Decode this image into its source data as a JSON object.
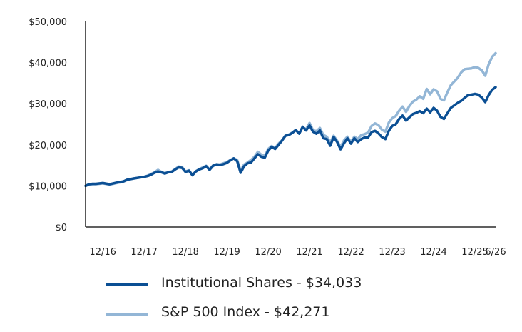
{
  "chart_data": {
    "type": "line",
    "title": "",
    "xlabel": "",
    "ylabel": "",
    "x_tick_labels": [
      "12/16",
      "12/17",
      "12/18",
      "12/19",
      "12/20",
      "12/21",
      "12/22",
      "12/23",
      "12/24",
      "12/25",
      "6/26"
    ],
    "y_tick_labels": [
      "$0",
      "$10,000",
      "$20,000",
      "$30,000",
      "$40,000",
      "$50,000"
    ],
    "ylim": [
      0,
      50000
    ],
    "xlim": [
      "2016-07",
      "2026-06"
    ],
    "grid": false,
    "legend_position": "bottom",
    "series": [
      {
        "name": "Institutional Shares - $34,033",
        "color": "#0b4f94",
        "values": [
          [
            "2016-07",
            10000
          ],
          [
            "2016-08",
            10400
          ],
          [
            "2016-09",
            10500
          ],
          [
            "2016-10",
            10500
          ],
          [
            "2016-12",
            10700
          ],
          [
            "2017-02",
            10400
          ],
          [
            "2017-04",
            10800
          ],
          [
            "2017-06",
            11100
          ],
          [
            "2017-07",
            11500
          ],
          [
            "2017-09",
            11800
          ],
          [
            "2017-12",
            12200
          ],
          [
            "2018-01",
            12400
          ],
          [
            "2018-02",
            12700
          ],
          [
            "2018-03",
            13200
          ],
          [
            "2018-04",
            13500
          ],
          [
            "2018-05",
            13300
          ],
          [
            "2018-06",
            13000
          ],
          [
            "2018-07",
            13300
          ],
          [
            "2018-08",
            13400
          ],
          [
            "2018-09",
            14000
          ],
          [
            "2018-10",
            14500
          ],
          [
            "2018-11",
            14400
          ],
          [
            "2018-12",
            13400
          ],
          [
            "2019-01",
            13700
          ],
          [
            "2019-02",
            12600
          ],
          [
            "2019-03",
            13500
          ],
          [
            "2019-04",
            14000
          ],
          [
            "2019-05",
            14300
          ],
          [
            "2019-06",
            14800
          ],
          [
            "2019-07",
            13900
          ],
          [
            "2019-08",
            14900
          ],
          [
            "2019-09",
            15200
          ],
          [
            "2019-10",
            15100
          ],
          [
            "2019-11",
            15300
          ],
          [
            "2019-12",
            15600
          ],
          [
            "2020-01",
            16200
          ],
          [
            "2020-02",
            16700
          ],
          [
            "2020-03",
            16000
          ],
          [
            "2020-04",
            13200
          ],
          [
            "2020-05",
            14800
          ],
          [
            "2020-06",
            15500
          ],
          [
            "2020-07",
            15700
          ],
          [
            "2020-08",
            16700
          ],
          [
            "2020-09",
            17700
          ],
          [
            "2020-10",
            17100
          ],
          [
            "2020-11",
            16900
          ],
          [
            "2020-12",
            18600
          ],
          [
            "2021-01",
            19500
          ],
          [
            "2021-02",
            19000
          ],
          [
            "2021-03",
            20000
          ],
          [
            "2021-04",
            21000
          ],
          [
            "2021-05",
            22200
          ],
          [
            "2021-06",
            22400
          ],
          [
            "2021-07",
            22900
          ],
          [
            "2021-08",
            23600
          ],
          [
            "2021-09",
            22700
          ],
          [
            "2021-10",
            24400
          ],
          [
            "2021-11",
            23500
          ],
          [
            "2021-12",
            24700
          ],
          [
            "2022-01",
            23200
          ],
          [
            "2022-02",
            22700
          ],
          [
            "2022-03",
            23500
          ],
          [
            "2022-04",
            21600
          ],
          [
            "2022-05",
            21400
          ],
          [
            "2022-06",
            19800
          ],
          [
            "2022-07",
            21900
          ],
          [
            "2022-08",
            20700
          ],
          [
            "2022-09",
            18900
          ],
          [
            "2022-10",
            20400
          ],
          [
            "2022-11",
            21600
          ],
          [
            "2022-12",
            20300
          ],
          [
            "2023-01",
            21600
          ],
          [
            "2023-02",
            20700
          ],
          [
            "2023-03",
            21400
          ],
          [
            "2023-04",
            21800
          ],
          [
            "2023-05",
            21800
          ],
          [
            "2023-06",
            23100
          ],
          [
            "2023-07",
            23400
          ],
          [
            "2023-08",
            22800
          ],
          [
            "2023-09",
            21900
          ],
          [
            "2023-10",
            21400
          ],
          [
            "2023-11",
            23400
          ],
          [
            "2023-12",
            24600
          ],
          [
            "2024-01",
            25000
          ],
          [
            "2024-02",
            26300
          ],
          [
            "2024-03",
            27100
          ],
          [
            "2024-04",
            25900
          ],
          [
            "2024-05",
            26700
          ],
          [
            "2024-06",
            27500
          ],
          [
            "2024-07",
            27800
          ],
          [
            "2024-08",
            28200
          ],
          [
            "2024-09",
            27700
          ],
          [
            "2024-10",
            28800
          ],
          [
            "2024-11",
            27900
          ],
          [
            "2024-12",
            29000
          ],
          [
            "2025-01",
            28300
          ],
          [
            "2025-02",
            26800
          ],
          [
            "2025-03",
            26300
          ],
          [
            "2025-04",
            27700
          ],
          [
            "2025-05",
            29000
          ],
          [
            "2025-06",
            29600
          ],
          [
            "2025-07",
            30200
          ],
          [
            "2025-08",
            30700
          ],
          [
            "2025-09",
            31400
          ],
          [
            "2025-10",
            32100
          ],
          [
            "2025-11",
            32200
          ],
          [
            "2025-12",
            32400
          ],
          [
            "2026-01",
            32200
          ],
          [
            "2026-02",
            31500
          ],
          [
            "2026-03",
            30400
          ],
          [
            "2026-04",
            32100
          ],
          [
            "2026-05",
            33400
          ],
          [
            "2026-06",
            34033
          ]
        ]
      },
      {
        "name": "S&P 500 Index - $42,271",
        "color": "#93b6d6",
        "values": [
          [
            "2016-07",
            10000
          ],
          [
            "2016-08",
            10300
          ],
          [
            "2016-09",
            10400
          ],
          [
            "2016-10",
            10400
          ],
          [
            "2016-12",
            10600
          ],
          [
            "2017-02",
            10300
          ],
          [
            "2017-04",
            10700
          ],
          [
            "2017-06",
            11000
          ],
          [
            "2017-07",
            11400
          ],
          [
            "2017-09",
            11800
          ],
          [
            "2017-12",
            12200
          ],
          [
            "2018-01",
            12500
          ],
          [
            "2018-02",
            12900
          ],
          [
            "2018-03",
            13300
          ],
          [
            "2018-04",
            13900
          ],
          [
            "2018-05",
            13400
          ],
          [
            "2018-06",
            13100
          ],
          [
            "2018-07",
            13400
          ],
          [
            "2018-08",
            13500
          ],
          [
            "2018-09",
            14100
          ],
          [
            "2018-10",
            14700
          ],
          [
            "2018-11",
            14600
          ],
          [
            "2018-12",
            13500
          ],
          [
            "2019-01",
            13800
          ],
          [
            "2019-02",
            12600
          ],
          [
            "2019-03",
            13600
          ],
          [
            "2019-04",
            14100
          ],
          [
            "2019-05",
            14500
          ],
          [
            "2019-06",
            14900
          ],
          [
            "2019-07",
            14000
          ],
          [
            "2019-08",
            15000
          ],
          [
            "2019-09",
            15300
          ],
          [
            "2019-10",
            15200
          ],
          [
            "2019-11",
            15500
          ],
          [
            "2019-12",
            15800
          ],
          [
            "2020-01",
            16300
          ],
          [
            "2020-02",
            16700
          ],
          [
            "2020-03",
            16300
          ],
          [
            "2020-04",
            13700
          ],
          [
            "2020-05",
            15200
          ],
          [
            "2020-06",
            15700
          ],
          [
            "2020-07",
            16300
          ],
          [
            "2020-08",
            17100
          ],
          [
            "2020-09",
            18300
          ],
          [
            "2020-10",
            17600
          ],
          [
            "2020-11",
            17300
          ],
          [
            "2020-12",
            19000
          ],
          [
            "2021-01",
            19700
          ],
          [
            "2021-02",
            19200
          ],
          [
            "2021-03",
            20300
          ],
          [
            "2021-04",
            21100
          ],
          [
            "2021-05",
            22300
          ],
          [
            "2021-06",
            22500
          ],
          [
            "2021-07",
            23000
          ],
          [
            "2021-08",
            23600
          ],
          [
            "2021-09",
            22900
          ],
          [
            "2021-10",
            24200
          ],
          [
            "2021-11",
            23800
          ],
          [
            "2021-12",
            25300
          ],
          [
            "2022-01",
            23600
          ],
          [
            "2022-02",
            23300
          ],
          [
            "2022-03",
            24100
          ],
          [
            "2022-04",
            22400
          ],
          [
            "2022-05",
            22000
          ],
          [
            "2022-06",
            20600
          ],
          [
            "2022-07",
            22200
          ],
          [
            "2022-08",
            21000
          ],
          [
            "2022-09",
            19500
          ],
          [
            "2022-10",
            21100
          ],
          [
            "2022-11",
            22000
          ],
          [
            "2022-12",
            20700
          ],
          [
            "2023-01",
            22000
          ],
          [
            "2023-02",
            21400
          ],
          [
            "2023-03",
            22400
          ],
          [
            "2023-04",
            22600
          ],
          [
            "2023-05",
            23000
          ],
          [
            "2023-06",
            24600
          ],
          [
            "2023-07",
            25200
          ],
          [
            "2023-08",
            24800
          ],
          [
            "2023-09",
            23700
          ],
          [
            "2023-10",
            23200
          ],
          [
            "2023-11",
            25400
          ],
          [
            "2023-12",
            26500
          ],
          [
            "2024-01",
            27000
          ],
          [
            "2024-02",
            28300
          ],
          [
            "2024-03",
            29300
          ],
          [
            "2024-04",
            28000
          ],
          [
            "2024-05",
            29500
          ],
          [
            "2024-06",
            30500
          ],
          [
            "2024-07",
            31000
          ],
          [
            "2024-08",
            31800
          ],
          [
            "2024-09",
            31200
          ],
          [
            "2024-10",
            33600
          ],
          [
            "2024-11",
            32300
          ],
          [
            "2024-12",
            33500
          ],
          [
            "2025-01",
            33000
          ],
          [
            "2025-02",
            31200
          ],
          [
            "2025-03",
            30800
          ],
          [
            "2025-04",
            32800
          ],
          [
            "2025-05",
            34500
          ],
          [
            "2025-06",
            35400
          ],
          [
            "2025-07",
            36300
          ],
          [
            "2025-08",
            37600
          ],
          [
            "2025-09",
            38400
          ],
          [
            "2025-10",
            38500
          ],
          [
            "2025-11",
            38600
          ],
          [
            "2025-12",
            38900
          ],
          [
            "2026-01",
            38700
          ],
          [
            "2026-02",
            38100
          ],
          [
            "2026-03",
            36800
          ],
          [
            "2026-04",
            39600
          ],
          [
            "2026-05",
            41400
          ],
          [
            "2026-06",
            42271
          ]
        ]
      }
    ]
  }
}
